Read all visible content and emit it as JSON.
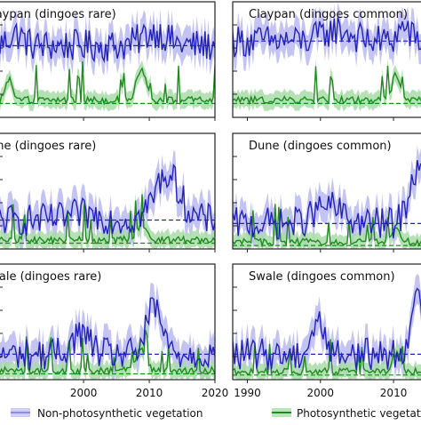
{
  "colors": {
    "npv": "#2222bb",
    "npv_band": "#b8b8f2",
    "pv": "#1f8a1f",
    "pv_band": "#a8dca8",
    "frame": "#222222",
    "background": "#ffffff"
  },
  "legend": {
    "npv_label": "Non-photosynthetic vegetation",
    "pv_label": "Photosynthetic vegetation"
  },
  "chart_data": [
    {
      "type": "line",
      "title": "Claypan (dingoes rare)",
      "x_range": [
        1987,
        2020
      ],
      "x_ticks": [
        2000,
        2010,
        2020
      ],
      "y_range": [
        0,
        1
      ],
      "grid": false,
      "series": [
        {
          "name": "Non-photosynthetic vegetation",
          "mean": 0.62,
          "peak_years": [
            2011,
            2013
          ]
        },
        {
          "name": "Photosynthetic vegetation",
          "mean": 0.12,
          "peak_years": [
            2010,
            2011
          ]
        }
      ]
    },
    {
      "type": "line",
      "title": "Claypan (dingoes common)",
      "x_range": [
        1988,
        2014
      ],
      "x_ticks": [
        1990,
        2000,
        2010
      ],
      "y_range": [
        0,
        1
      ],
      "grid": false,
      "series": [
        {
          "name": "Non-photosynthetic vegetation",
          "mean": 0.66,
          "peak_years": [
            2012
          ]
        },
        {
          "name": "Photosynthetic vegetation",
          "mean": 0.12,
          "peak_years": [
            2010
          ]
        }
      ]
    },
    {
      "type": "line",
      "title": "Dune (dingoes rare)",
      "x_range": [
        1987,
        2020
      ],
      "x_ticks": [
        2000,
        2010,
        2020
      ],
      "y_range": [
        0,
        1
      ],
      "grid": false,
      "series": [
        {
          "name": "Non-photosynthetic vegetation",
          "mean": 0.25,
          "peak_years": [
            2012
          ]
        },
        {
          "name": "Photosynthetic vegetation",
          "mean": 0.05,
          "peak_years": [
            2010
          ]
        }
      ]
    },
    {
      "type": "line",
      "title": "Dune (dingoes common)",
      "x_range": [
        1988,
        2014
      ],
      "x_ticks": [
        1990,
        2000,
        2010
      ],
      "y_range": [
        0,
        1
      ],
      "grid": false,
      "series": [
        {
          "name": "Non-photosynthetic vegetation",
          "mean": 0.22,
          "peak_years": [
            2012
          ]
        },
        {
          "name": "Photosynthetic vegetation",
          "mean": 0.03,
          "peak_years": [
            2010
          ]
        }
      ]
    },
    {
      "type": "line",
      "title": "Swale (dingoes rare)",
      "x_range": [
        1987,
        2020
      ],
      "x_ticks": [
        2000,
        2010,
        2020
      ],
      "y_range": [
        0,
        1
      ],
      "grid": false,
      "series": [
        {
          "name": "Non-photosynthetic vegetation",
          "mean": 0.22,
          "peak_years": [
            2011
          ]
        },
        {
          "name": "Photosynthetic vegetation",
          "mean": 0.05,
          "peak_years": [
            2010
          ]
        }
      ]
    },
    {
      "type": "line",
      "title": "Swale (dingoes common)",
      "x_range": [
        1988,
        2014
      ],
      "x_ticks": [
        1990,
        2000,
        2010
      ],
      "y_range": [
        0,
        1
      ],
      "grid": false,
      "series": [
        {
          "name": "Non-photosynthetic vegetation",
          "mean": 0.22,
          "peak_years": [
            2012
          ]
        },
        {
          "name": "Photosynthetic vegetation",
          "mean": 0.04,
          "peak_years": [
            2010
          ]
        }
      ]
    }
  ]
}
